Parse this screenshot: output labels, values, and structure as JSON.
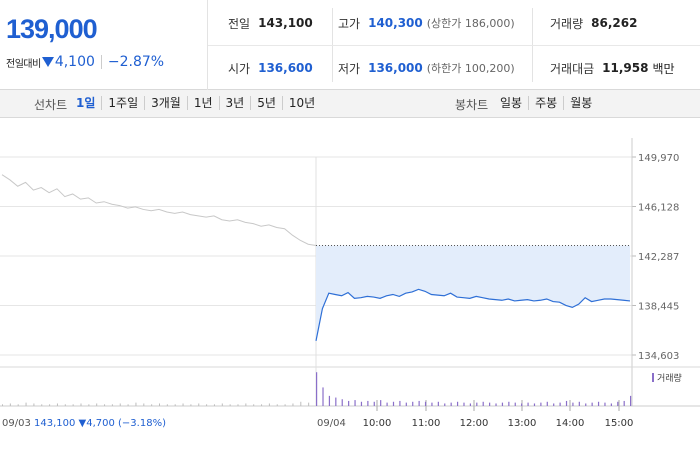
{
  "price": {
    "current": "139,000",
    "change_label": "전일대비",
    "change_amount": "4,100",
    "change_pct": "−2.87%",
    "color_down": "#1f5fd1"
  },
  "stats": {
    "prev_close": {
      "label": "전일",
      "value": "143,100"
    },
    "high": {
      "label": "고가",
      "value": "140,300",
      "sub": "(상한가 186,000)"
    },
    "volume": {
      "label": "거래량",
      "value": "86,262"
    },
    "open": {
      "label": "시가",
      "value": "136,600"
    },
    "low": {
      "label": "저가",
      "value": "136,000",
      "sub": "(하한가 100,200)"
    },
    "turnover": {
      "label": "거래대금",
      "value": "11,958",
      "unit": "백만"
    }
  },
  "toolbar": {
    "line_label": "선차트",
    "periods": [
      "1일",
      "1주일",
      "3개월",
      "1년",
      "3년",
      "5년",
      "10년"
    ],
    "active_period": "1일",
    "candle_label": "봉차트",
    "candles": [
      "일봉",
      "주봉",
      "월봉"
    ]
  },
  "chart_data": {
    "type": "line",
    "y_ticks": [
      "149,970",
      "146,128",
      "142,287",
      "138,445",
      "134,603"
    ],
    "ylim": [
      134603,
      149970
    ],
    "prev_day": {
      "label": "09/03",
      "close": "143,100",
      "change": "4,700",
      "change_pct": "(−3.18%)",
      "color": "#c8c8c8"
    },
    "today": {
      "label": "09/04",
      "color": "#2e6fd6",
      "fill": "#e3edfb"
    },
    "x_ticks": [
      "10:00",
      "11:00",
      "12:00",
      "13:00",
      "14:00",
      "15:00"
    ],
    "volume_legend": "거래량",
    "volume_color": "#8a6fc9",
    "reference_value": 143100,
    "prev_series": [
      148600,
      148200,
      147700,
      148000,
      147400,
      147600,
      147200,
      147500,
      146900,
      147100,
      146700,
      146800,
      146400,
      146500,
      146300,
      146200,
      146000,
      146100,
      145900,
      145800,
      145900,
      145700,
      145600,
      145700,
      145500,
      145400,
      145300,
      145400,
      145100,
      145000,
      145100,
      144900,
      144800,
      144600,
      144700,
      144500,
      144400,
      143900,
      143500,
      143200,
      143100
    ],
    "today_series": [
      135700,
      138200,
      139400,
      139300,
      139200,
      139450,
      139000,
      139050,
      139150,
      139100,
      139000,
      139200,
      139300,
      139150,
      139400,
      139500,
      139700,
      139550,
      139300,
      139250,
      139200,
      139400,
      139100,
      139050,
      139000,
      139150,
      139050,
      138950,
      138900,
      138850,
      138950,
      138800,
      138850,
      138900,
      138800,
      138850,
      138950,
      138750,
      138700,
      138450,
      138300,
      138550,
      139050,
      138750,
      138850,
      138950,
      138950,
      138900,
      138850,
      138800
    ],
    "prev_volume": [
      2,
      3,
      2,
      4,
      3,
      2,
      2,
      3,
      2,
      2,
      3,
      2,
      3,
      2,
      2,
      3,
      2,
      4,
      3,
      2,
      3,
      2,
      2,
      3,
      2,
      3,
      2,
      2,
      3,
      2,
      2,
      3,
      2,
      2,
      3,
      2,
      2,
      3,
      5,
      4,
      3
    ],
    "today_volume": [
      40,
      22,
      12,
      10,
      8,
      6,
      7,
      5,
      6,
      5,
      7,
      4,
      5,
      6,
      4,
      5,
      6,
      5,
      4,
      5,
      3,
      4,
      5,
      4,
      3,
      4,
      5,
      4,
      3,
      4,
      5,
      4,
      3,
      4,
      3,
      4,
      5,
      3,
      4,
      6,
      4,
      5,
      3,
      4,
      5,
      4,
      3,
      5,
      6,
      12
    ]
  }
}
